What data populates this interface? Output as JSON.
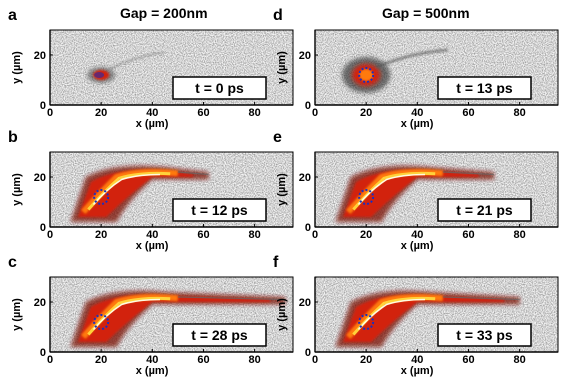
{
  "figure": {
    "columns": [
      {
        "title": "Gap = 200nm"
      },
      {
        "title": "Gap = 500nm"
      }
    ],
    "panels": [
      {
        "letter": "a",
        "time": "t = 0 ps",
        "col": 0,
        "row": 0,
        "plume": "none",
        "spot": "red"
      },
      {
        "letter": "b",
        "time": "t = 12 ps",
        "col": 0,
        "row": 1,
        "plume": "medium",
        "spot": "ring"
      },
      {
        "letter": "c",
        "time": "t = 28 ps",
        "col": 0,
        "row": 2,
        "plume": "long",
        "spot": "ring"
      },
      {
        "letter": "d",
        "time": "t = 13 ps",
        "col": 1,
        "row": 0,
        "plume": "blob",
        "spot": "ring"
      },
      {
        "letter": "e",
        "time": "t = 21 ps",
        "col": 1,
        "row": 1,
        "plume": "medium",
        "spot": "ring"
      },
      {
        "letter": "f",
        "time": "t = 33 ps",
        "col": 1,
        "row": 2,
        "plume": "long",
        "spot": "ring"
      }
    ],
    "axes": {
      "xlabel": "x (µm)",
      "ylabel": "y (µm)",
      "xticks": [
        "0",
        "20",
        "40",
        "60",
        "80"
      ],
      "yticks": [
        "0",
        "20"
      ],
      "xlim": [
        0,
        95
      ],
      "ylim": [
        0,
        30
      ]
    },
    "colors": {
      "hot_white": "#fffbe0",
      "yellow": "#ffd23a",
      "orange": "#ff7a10",
      "red": "#d2230f",
      "darkred": "#7a0a06",
      "ring": "#1a2fbf"
    }
  }
}
